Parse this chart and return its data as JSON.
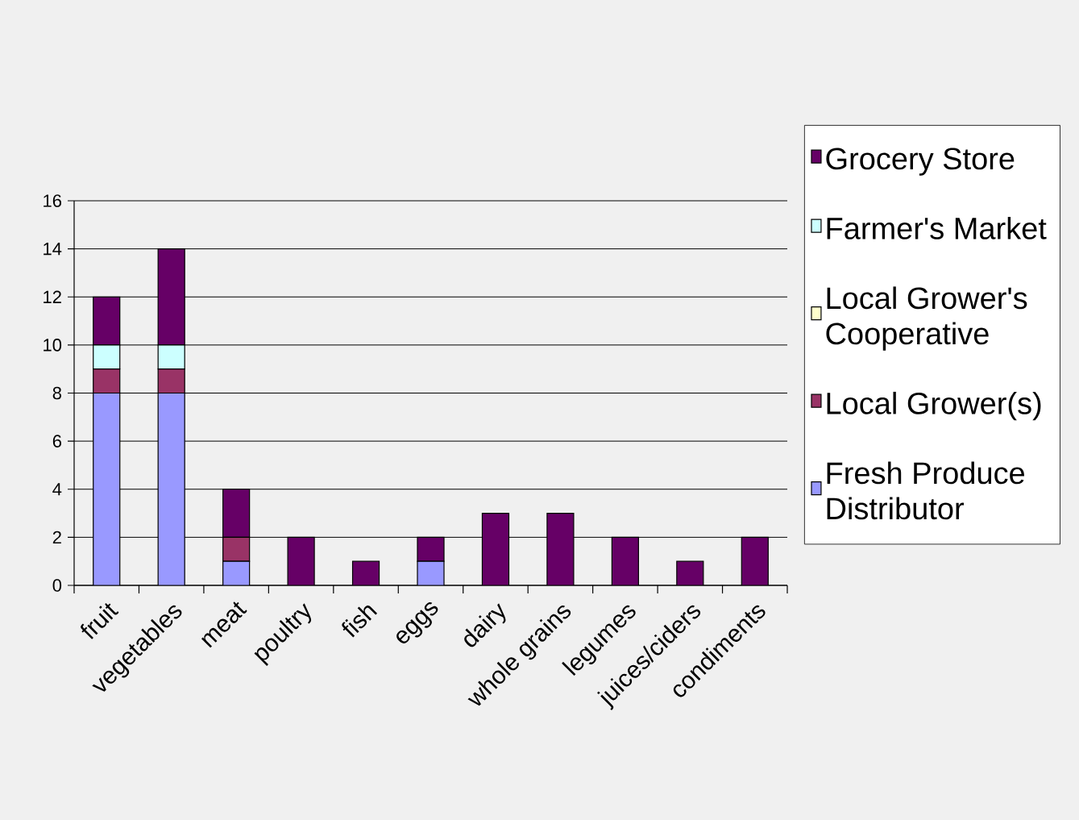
{
  "chart_data": {
    "type": "bar",
    "stacked": true,
    "categories": [
      "fruit",
      "vegetables",
      "meat",
      "poultry",
      "fish",
      "eggs",
      "dairy",
      "whole grains",
      "legumes",
      "juices/ciders",
      "condiments"
    ],
    "series": [
      {
        "name": "Fresh Produce Distributor",
        "color": "#9999ff",
        "values": [
          8,
          8,
          1,
          0,
          0,
          1,
          0,
          0,
          0,
          0,
          0
        ]
      },
      {
        "name": "Local Grower(s)",
        "color": "#993366",
        "values": [
          1,
          1,
          1,
          0,
          0,
          0,
          0,
          0,
          0,
          0,
          0
        ]
      },
      {
        "name": "Local Grower's Cooperative",
        "color": "#ffffcc",
        "values": [
          0,
          0,
          0,
          0,
          0,
          0,
          0,
          0,
          0,
          0,
          0
        ]
      },
      {
        "name": "Farmer's Market",
        "color": "#ccffff",
        "values": [
          1,
          1,
          0,
          0,
          0,
          0,
          0,
          0,
          0,
          0,
          0
        ]
      },
      {
        "name": "Grocery Store",
        "color": "#660066",
        "values": [
          2,
          4,
          2,
          2,
          1,
          1,
          3,
          3,
          2,
          1,
          2
        ]
      }
    ],
    "ylim": [
      0,
      16
    ],
    "yticks": [
      0,
      2,
      4,
      6,
      8,
      10,
      12,
      14,
      16
    ],
    "grid": "y",
    "legend": "right"
  }
}
